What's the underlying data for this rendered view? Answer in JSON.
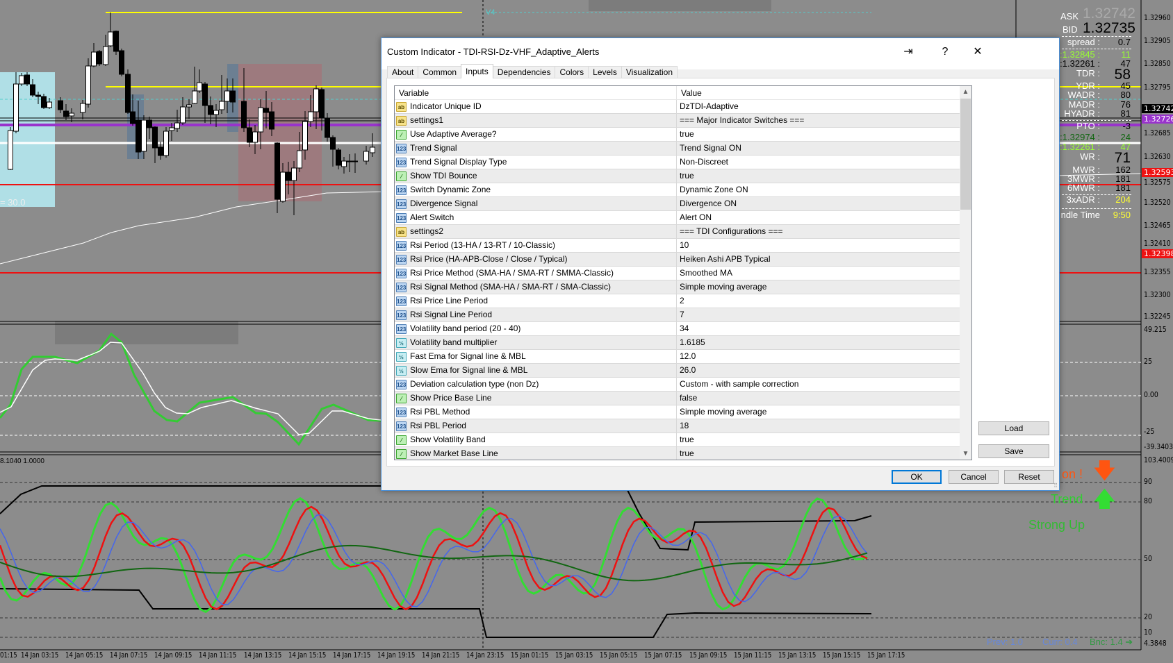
{
  "chart": {
    "price_axis": [
      "1.32960",
      "1.32905",
      "1.32850",
      "1.32795",
      "1.32685",
      "1.32630",
      "1.32575",
      "1.32520",
      "1.32465",
      "1.32410",
      "1.32355",
      "1.32300",
      "1.32245"
    ],
    "price_markers": {
      "black": "1.32742",
      "purple": "1.32726",
      "red1": "1.32593",
      "red2": "1.32398"
    },
    "osc_axis": [
      "49.215",
      "25",
      "0.00",
      "-25",
      "-39.3403"
    ],
    "tdi_axis": [
      "103.4009",
      "90",
      "80",
      "50",
      "20",
      "10",
      "4.3848"
    ],
    "osc2_label": "8.1040 1.0000",
    "chart_note": "= 30.0",
    "vline_label": "V4",
    "time_axis": [
      "01:15",
      "14 Jan 03:15",
      "14 Jan 05:15",
      "14 Jan 07:15",
      "14 Jan 09:15",
      "14 Jan 11:15",
      "14 Jan 13:15",
      "14 Jan 15:15",
      "14 Jan 17:15",
      "14 Jan 19:15",
      "14 Jan 21:15",
      "14 Jan 23:15",
      "15 Jan 01:15",
      "15 Jan 03:15",
      "15 Jan 05:15",
      "15 Jan 07:15",
      "15 Jan 09:15",
      "15 Jan 11:15",
      "15 Jan 13:15",
      "15 Jan 15:15",
      "15 Jan 17:15"
    ],
    "signals": {
      "alert": "on !",
      "trend": "Trend",
      "strength": "Strong Up",
      "prev": "Prev: 1.0",
      "curr": "Curr: 0.4",
      "bnc": "Bnc: 1.4 ➔"
    },
    "colors": {
      "background": "#8c8c8c",
      "yellow": "#ffff00",
      "purple": "#9933cc",
      "red": "#ee1111",
      "green": "#33dd33",
      "blue": "#4466ee",
      "alert": "#ff5511"
    }
  },
  "info_panel": {
    "ask_label": "ASK",
    "ask": "1.32742",
    "bid_label": "BID",
    "bid": "1.32735",
    "rows": [
      {
        "label": "spread :",
        "value": "0.7",
        "color": "#000"
      },
      {
        "label": ":1.32845 :",
        "value": "11",
        "color": "#99ff33"
      },
      {
        "label": ":1.32261 :",
        "value": "47",
        "color": "#000"
      },
      {
        "label": "TDR :",
        "value": "58",
        "color": "#000"
      },
      {
        "label": "YDR :",
        "value": "45",
        "color": "#000"
      },
      {
        "label": "WADR :",
        "value": "80",
        "color": "#000"
      },
      {
        "label": "MADR :",
        "value": "76",
        "color": "#000"
      },
      {
        "label": "HYADR :",
        "value": "81",
        "color": "#000"
      },
      {
        "label": "PTO :",
        "value": "-3",
        "color": "#000"
      },
      {
        "label": ":1.32974 :",
        "value": "24",
        "color": "#116611"
      },
      {
        "label": ":1.32261 :",
        "value": "47",
        "color": "#99ff33"
      },
      {
        "label": "WR :",
        "value": "71",
        "color": "#000"
      },
      {
        "label": "MWR :",
        "value": "162",
        "color": "#000"
      },
      {
        "label": "3MWR :",
        "value": "181",
        "color": "#000"
      },
      {
        "label": "6MWR :",
        "value": "181",
        "color": "#000"
      },
      {
        "label": "3xADR :",
        "value": "204",
        "color": "#ffff33"
      },
      {
        "label": "ndle Time",
        "value": "9:50",
        "color": "#ffff33"
      }
    ]
  },
  "dialog": {
    "title": "Custom Indicator - TDI-RSI-Dz-VHF_Adaptive_Alerts",
    "help": "?",
    "tabs": [
      "About",
      "Common",
      "Inputs",
      "Dependencies",
      "Colors",
      "Levels",
      "Visualization"
    ],
    "selected_tab": "Inputs",
    "columns": [
      "Variable",
      "Value"
    ],
    "rows": [
      {
        "type": "ab",
        "variable": "Indicator Unique ID",
        "value": "DzTDI-Adaptive"
      },
      {
        "type": "ab",
        "variable": "settings1",
        "value": "=== Major Indicator Switches ==="
      },
      {
        "type": "b",
        "variable": "Use Adaptive Average?",
        "value": "true"
      },
      {
        "type": "n",
        "variable": "Trend Signal",
        "value": "Trend Signal ON"
      },
      {
        "type": "n",
        "variable": "Trend Signal Display Type",
        "value": "Non-Discreet"
      },
      {
        "type": "b",
        "variable": "Show TDI Bounce",
        "value": "true"
      },
      {
        "type": "n",
        "variable": "Switch Dynamic Zone",
        "value": "Dynamic Zone ON"
      },
      {
        "type": "n",
        "variable": "Divergence Signal",
        "value": "Divergence ON"
      },
      {
        "type": "n",
        "variable": "Alert Switch",
        "value": "Alert ON"
      },
      {
        "type": "ab",
        "variable": "settings2",
        "value": "=== TDI Configurations ==="
      },
      {
        "type": "n",
        "variable": "Rsi Period (13-HA / 13-RT / 10-Classic)",
        "value": "10"
      },
      {
        "type": "n",
        "variable": "Rsi Price (HA-APB-Close / Close / Typical)",
        "value": "Heiken Ashi APB Typical"
      },
      {
        "type": "n",
        "variable": "Rsi Price Method (SMA-HA / SMA-RT / SMMA-Classic)",
        "value": "Smoothed MA"
      },
      {
        "type": "n",
        "variable": "Rsi Signal Method (SMA-HA / SMA-RT / SMA-Classic)",
        "value": "Simple moving average"
      },
      {
        "type": "n",
        "variable": "Rsi Price Line Period",
        "value": "2"
      },
      {
        "type": "n",
        "variable": "Rsi Signal Line Period",
        "value": "7"
      },
      {
        "type": "n",
        "variable": "Volatility band period (20 - 40)",
        "value": "34"
      },
      {
        "type": "d",
        "variable": "Volatility band multiplier",
        "value": "1.6185"
      },
      {
        "type": "d",
        "variable": "Fast Ema for Signal line & MBL",
        "value": "12.0"
      },
      {
        "type": "d",
        "variable": "Slow Ema for Signal line & MBL",
        "value": "26.0"
      },
      {
        "type": "n",
        "variable": "Deviation calculation type (non Dz)",
        "value": "Custom - with sample correction"
      },
      {
        "type": "b",
        "variable": "Show Price Base Line",
        "value": "false"
      },
      {
        "type": "n",
        "variable": "Rsi PBL Method",
        "value": "Simple moving average"
      },
      {
        "type": "n",
        "variable": "Rsi PBL Period",
        "value": "18"
      },
      {
        "type": "b",
        "variable": "Show Volatility Band",
        "value": "true"
      },
      {
        "type": "b",
        "variable": "Show Market Base Line",
        "value": "true"
      }
    ],
    "icon_text": {
      "ab": "ab",
      "n": "123",
      "b": "⁄",
      "d": "½"
    },
    "buttons": {
      "load": "Load",
      "save": "Save",
      "ok": "OK",
      "cancel": "Cancel",
      "reset": "Reset"
    }
  }
}
